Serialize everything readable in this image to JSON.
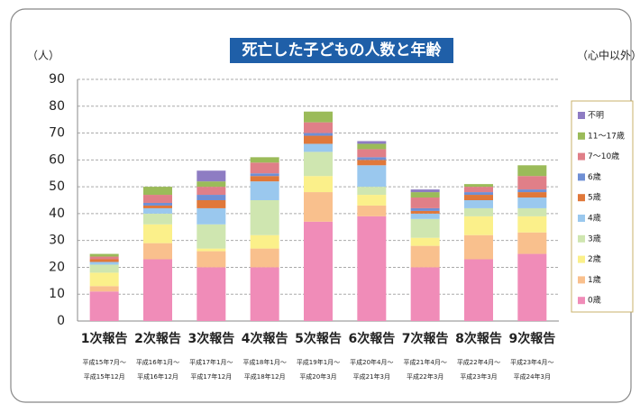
{
  "chart_data": {
    "type": "stacked_bar",
    "title": "死亡した子どもの人数と年齢",
    "y_label": "（人）",
    "note": "（心中以外）",
    "categories": [
      "1次報告",
      "2次報告",
      "3次報告",
      "4次報告",
      "5次報告",
      "6次報告",
      "7次報告",
      "8次報告",
      "9次報告"
    ],
    "periods": [
      [
        "平成15年7月～",
        "平成15年12月"
      ],
      [
        "平成16年1月～",
        "平成16年12月"
      ],
      [
        "平成17年1月～",
        "平成17年12月"
      ],
      [
        "平成18年1月～",
        "平成18年12月"
      ],
      [
        "平成19年1月～",
        "平成20年3月"
      ],
      [
        "平成20年4月～",
        "平成21年3月"
      ],
      [
        "平成21年4月～",
        "平成22年3月"
      ],
      [
        "平成22年4月～",
        "平成23年3月"
      ],
      [
        "平成23年4月～",
        "平成24年3月"
      ]
    ],
    "series": [
      {
        "name": "0歳",
        "color": "#f08cb8",
        "values": [
          11,
          23,
          20,
          20,
          37,
          39,
          20,
          23,
          25
        ]
      },
      {
        "name": "1歳",
        "color": "#f9c08d",
        "values": [
          2,
          6,
          6,
          7,
          11,
          4,
          8,
          9,
          8
        ]
      },
      {
        "name": "2歳",
        "color": "#fbf08a",
        "values": [
          5,
          7,
          1,
          5,
          6,
          4,
          3,
          7,
          6
        ]
      },
      {
        "name": "3歳",
        "color": "#cfe6b0",
        "values": [
          3,
          4,
          9,
          13,
          9,
          3,
          7,
          3,
          3
        ]
      },
      {
        "name": "4歳",
        "color": "#9ac8ee",
        "values": [
          1,
          2,
          6,
          7,
          3,
          8,
          2,
          3,
          4
        ]
      },
      {
        "name": "5歳",
        "color": "#e0783a",
        "values": [
          1,
          1,
          3,
          2,
          3,
          2,
          1,
          2,
          2
        ]
      },
      {
        "name": "6歳",
        "color": "#6f8fd4",
        "values": [
          0,
          1,
          2,
          1,
          1,
          1,
          1,
          1,
          1
        ]
      },
      {
        "name": "7～10歳",
        "color": "#e07f88",
        "values": [
          1,
          3,
          3,
          4,
          4,
          3,
          4,
          2,
          5
        ]
      },
      {
        "name": "11～17歳",
        "color": "#9bbb59",
        "values": [
          1,
          3,
          2,
          2,
          4,
          2,
          2,
          1,
          4
        ]
      },
      {
        "name": "不明",
        "color": "#8e7cc3",
        "values": [
          0,
          0,
          4,
          0,
          0,
          1,
          1,
          0,
          0
        ]
      }
    ],
    "ylim": [
      0,
      90
    ],
    "yticks": [
      0,
      10,
      20,
      30,
      40,
      50,
      60,
      70,
      80,
      90
    ],
    "grid": true
  }
}
